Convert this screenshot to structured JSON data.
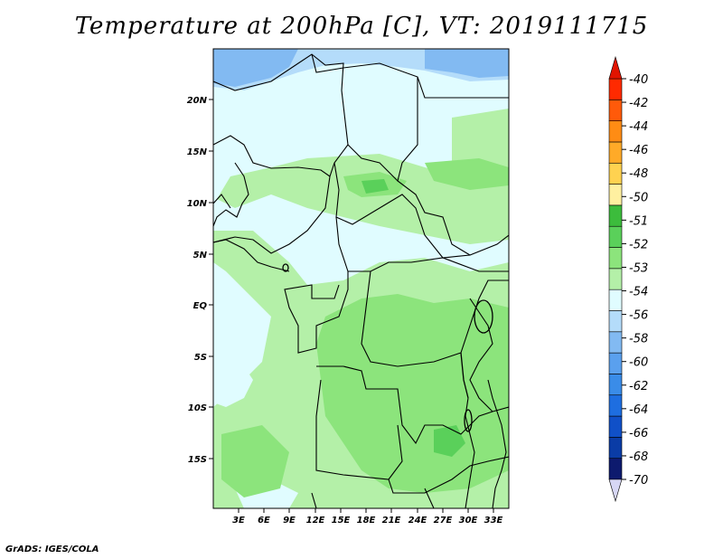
{
  "title": "Temperature at 200hPa [C], VT: 2019111715",
  "credit": "GrADS: IGES/COLA",
  "map": {
    "lat_labels": [
      "20N",
      "15N",
      "10N",
      "5N",
      "EQ",
      "5S",
      "10S",
      "15S"
    ],
    "lon_labels": [
      "3E",
      "6E",
      "9E",
      "12E",
      "15E",
      "18E",
      "21E",
      "24E",
      "27E",
      "30E",
      "33E"
    ]
  },
  "legend": {
    "colors": [
      "#d7d7f5",
      "#0d1a6e",
      "#0a3ca6",
      "#1050c8",
      "#1e6ee0",
      "#3a8ce8",
      "#5aa0ee",
      "#82baf2",
      "#b4dcfa",
      "#e0fcff",
      "#b4f0a8",
      "#8ce47c",
      "#5ad05a",
      "#3cbc3c",
      "#fff0a0",
      "#ffd250",
      "#ffaa28",
      "#ff8c14",
      "#ff5a0a",
      "#ff2a00",
      "#e11400"
    ],
    "labels": [
      "-40",
      "-42",
      "-44",
      "-46",
      "-48",
      "-50",
      "-51",
      "-52",
      "-53",
      "-54",
      "-56",
      "-58",
      "-60",
      "-62",
      "-64",
      "-66",
      "-68",
      "-70"
    ]
  }
}
